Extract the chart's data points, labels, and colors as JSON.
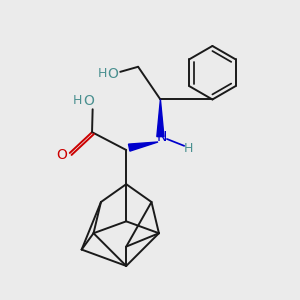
{
  "bg_color": "#ebebeb",
  "bond_color": "#1a1a1a",
  "N_color": "#0000cc",
  "O_color": "#cc0000",
  "OH_color": "#4a9090",
  "figsize": [
    3.0,
    3.0
  ],
  "dpi": 100,
  "xlim": [
    0,
    10
  ],
  "ylim": [
    0,
    10
  ],
  "lw": 1.4,
  "font_size_label": 9,
  "font_size_atom": 10
}
